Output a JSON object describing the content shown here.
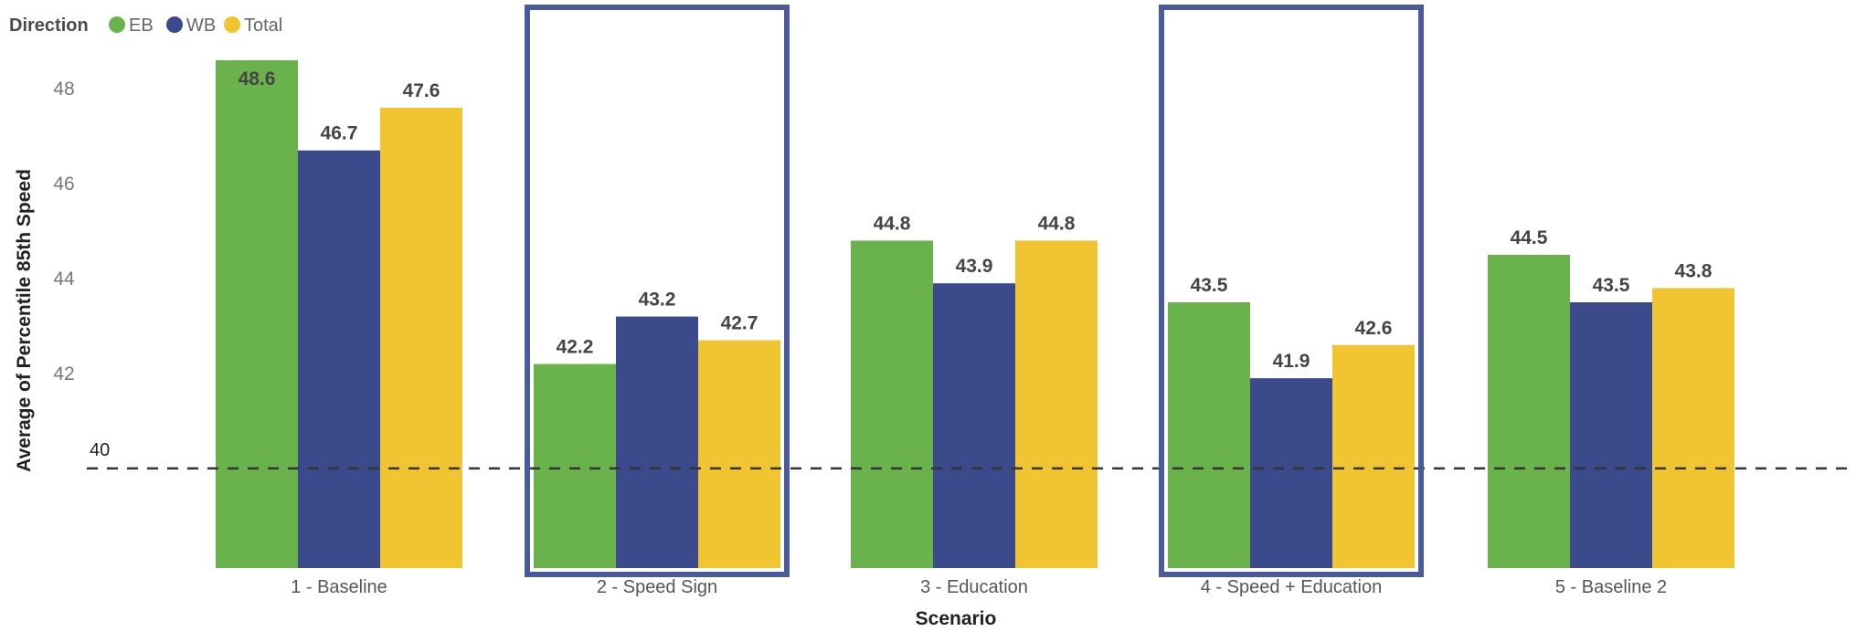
{
  "chart_data": {
    "type": "bar",
    "legend": {
      "title": "Direction",
      "position": "top-left"
    },
    "xlabel": "Scenario",
    "ylabel": "Average of Percentile 85th Speed",
    "categories": [
      "1 - Baseline",
      "2 - Speed Sign",
      "3 - Education",
      "4 - Speed + Education",
      "5 - Baseline 2"
    ],
    "series": [
      {
        "name": "EB",
        "color": "#6ab34c",
        "values": [
          48.6,
          42.2,
          44.8,
          43.5,
          44.5
        ]
      },
      {
        "name": "WB",
        "color": "#3b4a8a",
        "values": [
          46.7,
          43.2,
          43.9,
          41.9,
          43.5
        ]
      },
      {
        "name": "Total",
        "color": "#f0c531",
        "values": [
          47.6,
          42.7,
          44.8,
          42.6,
          43.8
        ]
      }
    ],
    "ylim": [
      37.9,
      49.1
    ],
    "yticks": [
      40,
      42,
      44,
      46,
      48
    ],
    "reference_line": {
      "value": 40,
      "label": "40",
      "style": "dashed"
    },
    "highlighted_categories": [
      "2 - Speed Sign",
      "4 - Speed + Education"
    ],
    "highlight_color": "#4a5a9a",
    "grid": false
  }
}
